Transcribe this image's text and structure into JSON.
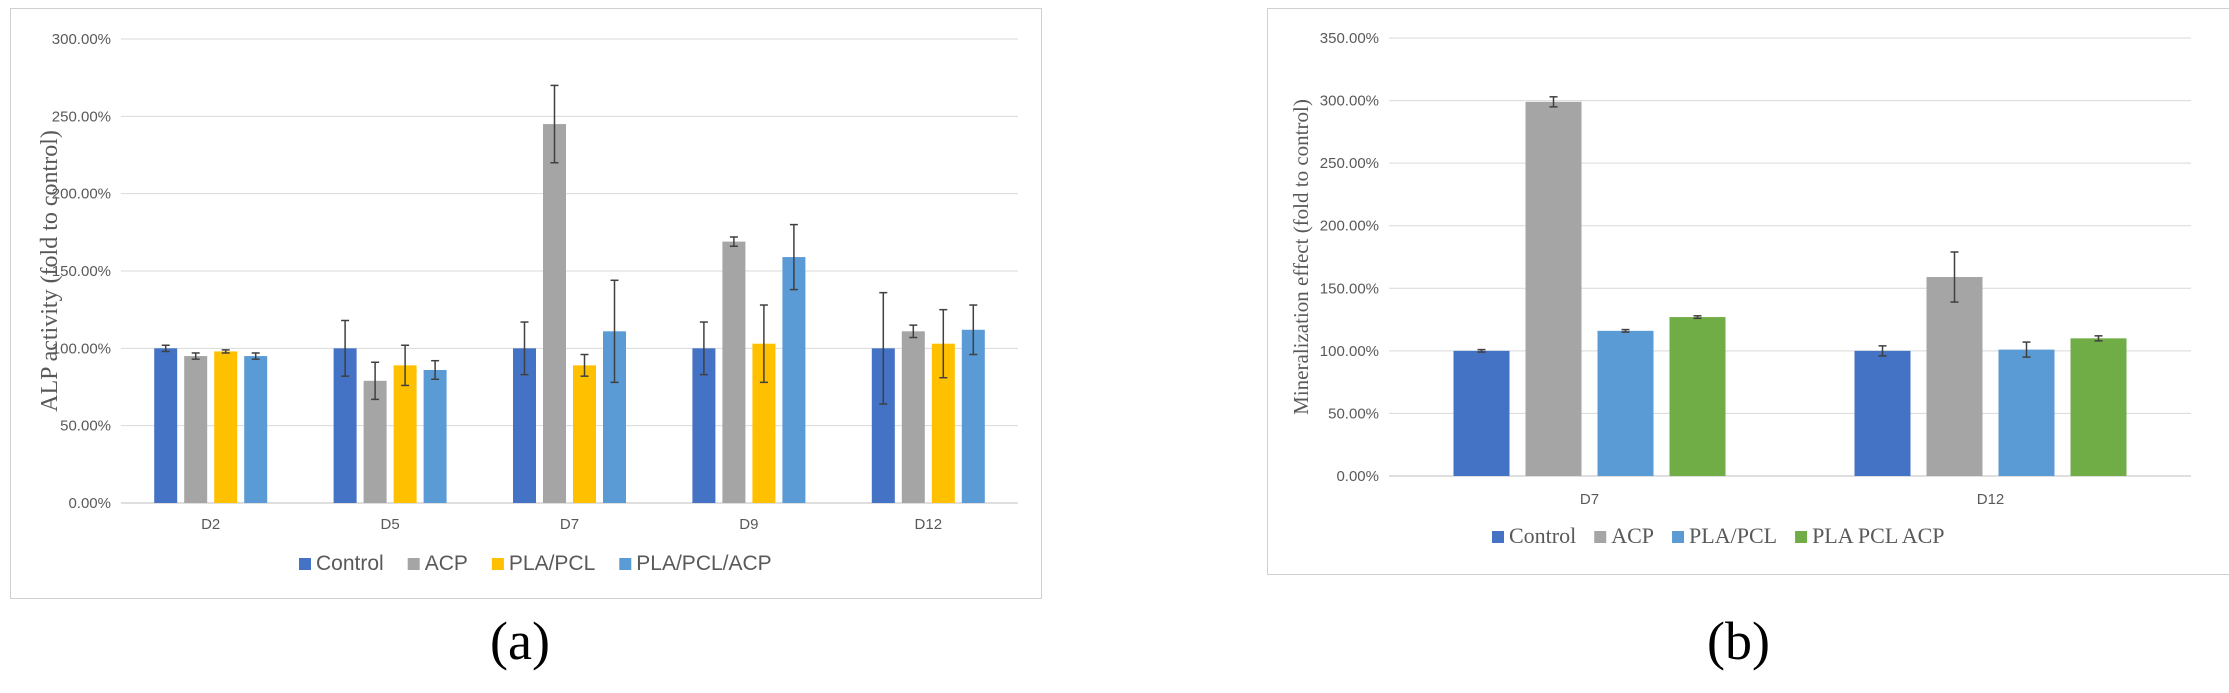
{
  "panels": {
    "a_label": "(a)",
    "b_label": "(b)"
  },
  "colors": {
    "Control": "#4472c4",
    "ACP": "#a5a5a5",
    "PLA/PCL_a": "#ffc000",
    "PLA/PCL/ACP": "#5b9bd5",
    "PLA/PCL_b": "#5b9bd5",
    "PLA PCL ACP": "#70ad47",
    "grid": "#d9d9d9",
    "axis": "#bfbfbf"
  },
  "chart_data": [
    {
      "type": "bar",
      "title": "",
      "xlabel": "",
      "ylabel": "ALP activity (fold to control)",
      "ylim": [
        0,
        300
      ],
      "yticks": [
        "0.00%",
        "50.00%",
        "100.00%",
        "150.00%",
        "200.00%",
        "250.00%",
        "300.00%"
      ],
      "categories": [
        "D2",
        "D5",
        "D7",
        "D9",
        "D12"
      ],
      "legend_position": "bottom",
      "grid": true,
      "series": [
        {
          "name": "Control",
          "values": [
            100,
            100,
            100,
            100,
            100
          ],
          "errors": [
            2,
            18,
            17,
            17,
            36
          ]
        },
        {
          "name": "ACP",
          "values": [
            95,
            79,
            245,
            169,
            111
          ],
          "errors": [
            2,
            12,
            25,
            3,
            4
          ]
        },
        {
          "name": "PLA/PCL",
          "values": [
            98,
            89,
            89,
            103,
            103
          ],
          "errors": [
            1,
            13,
            7,
            25,
            22
          ]
        },
        {
          "name": "PLA/PCL/ACP",
          "values": [
            95,
            86,
            111,
            159,
            112
          ],
          "errors": [
            2,
            6,
            33,
            21,
            16
          ]
        }
      ]
    },
    {
      "type": "bar",
      "title": "",
      "xlabel": "",
      "ylabel": "Mineralization effect  (fold to control)",
      "ylim": [
        0,
        350
      ],
      "yticks": [
        "0.00%",
        "50.00%",
        "100.00%",
        "150.00%",
        "200.00%",
        "250.00%",
        "300.00%",
        "350.00%"
      ],
      "categories": [
        "D7",
        "D12"
      ],
      "legend_position": "bottom",
      "grid": true,
      "series": [
        {
          "name": "Control",
          "values": [
            100,
            100
          ],
          "errors": [
            1,
            4
          ]
        },
        {
          "name": "ACP",
          "values": [
            299,
            159
          ],
          "errors": [
            4,
            20
          ]
        },
        {
          "name": "PLA/PCL",
          "values": [
            116,
            101
          ],
          "errors": [
            1,
            6
          ]
        },
        {
          "name": "PLA PCL ACP",
          "values": [
            127,
            110
          ],
          "errors": [
            1,
            2
          ]
        }
      ]
    }
  ]
}
